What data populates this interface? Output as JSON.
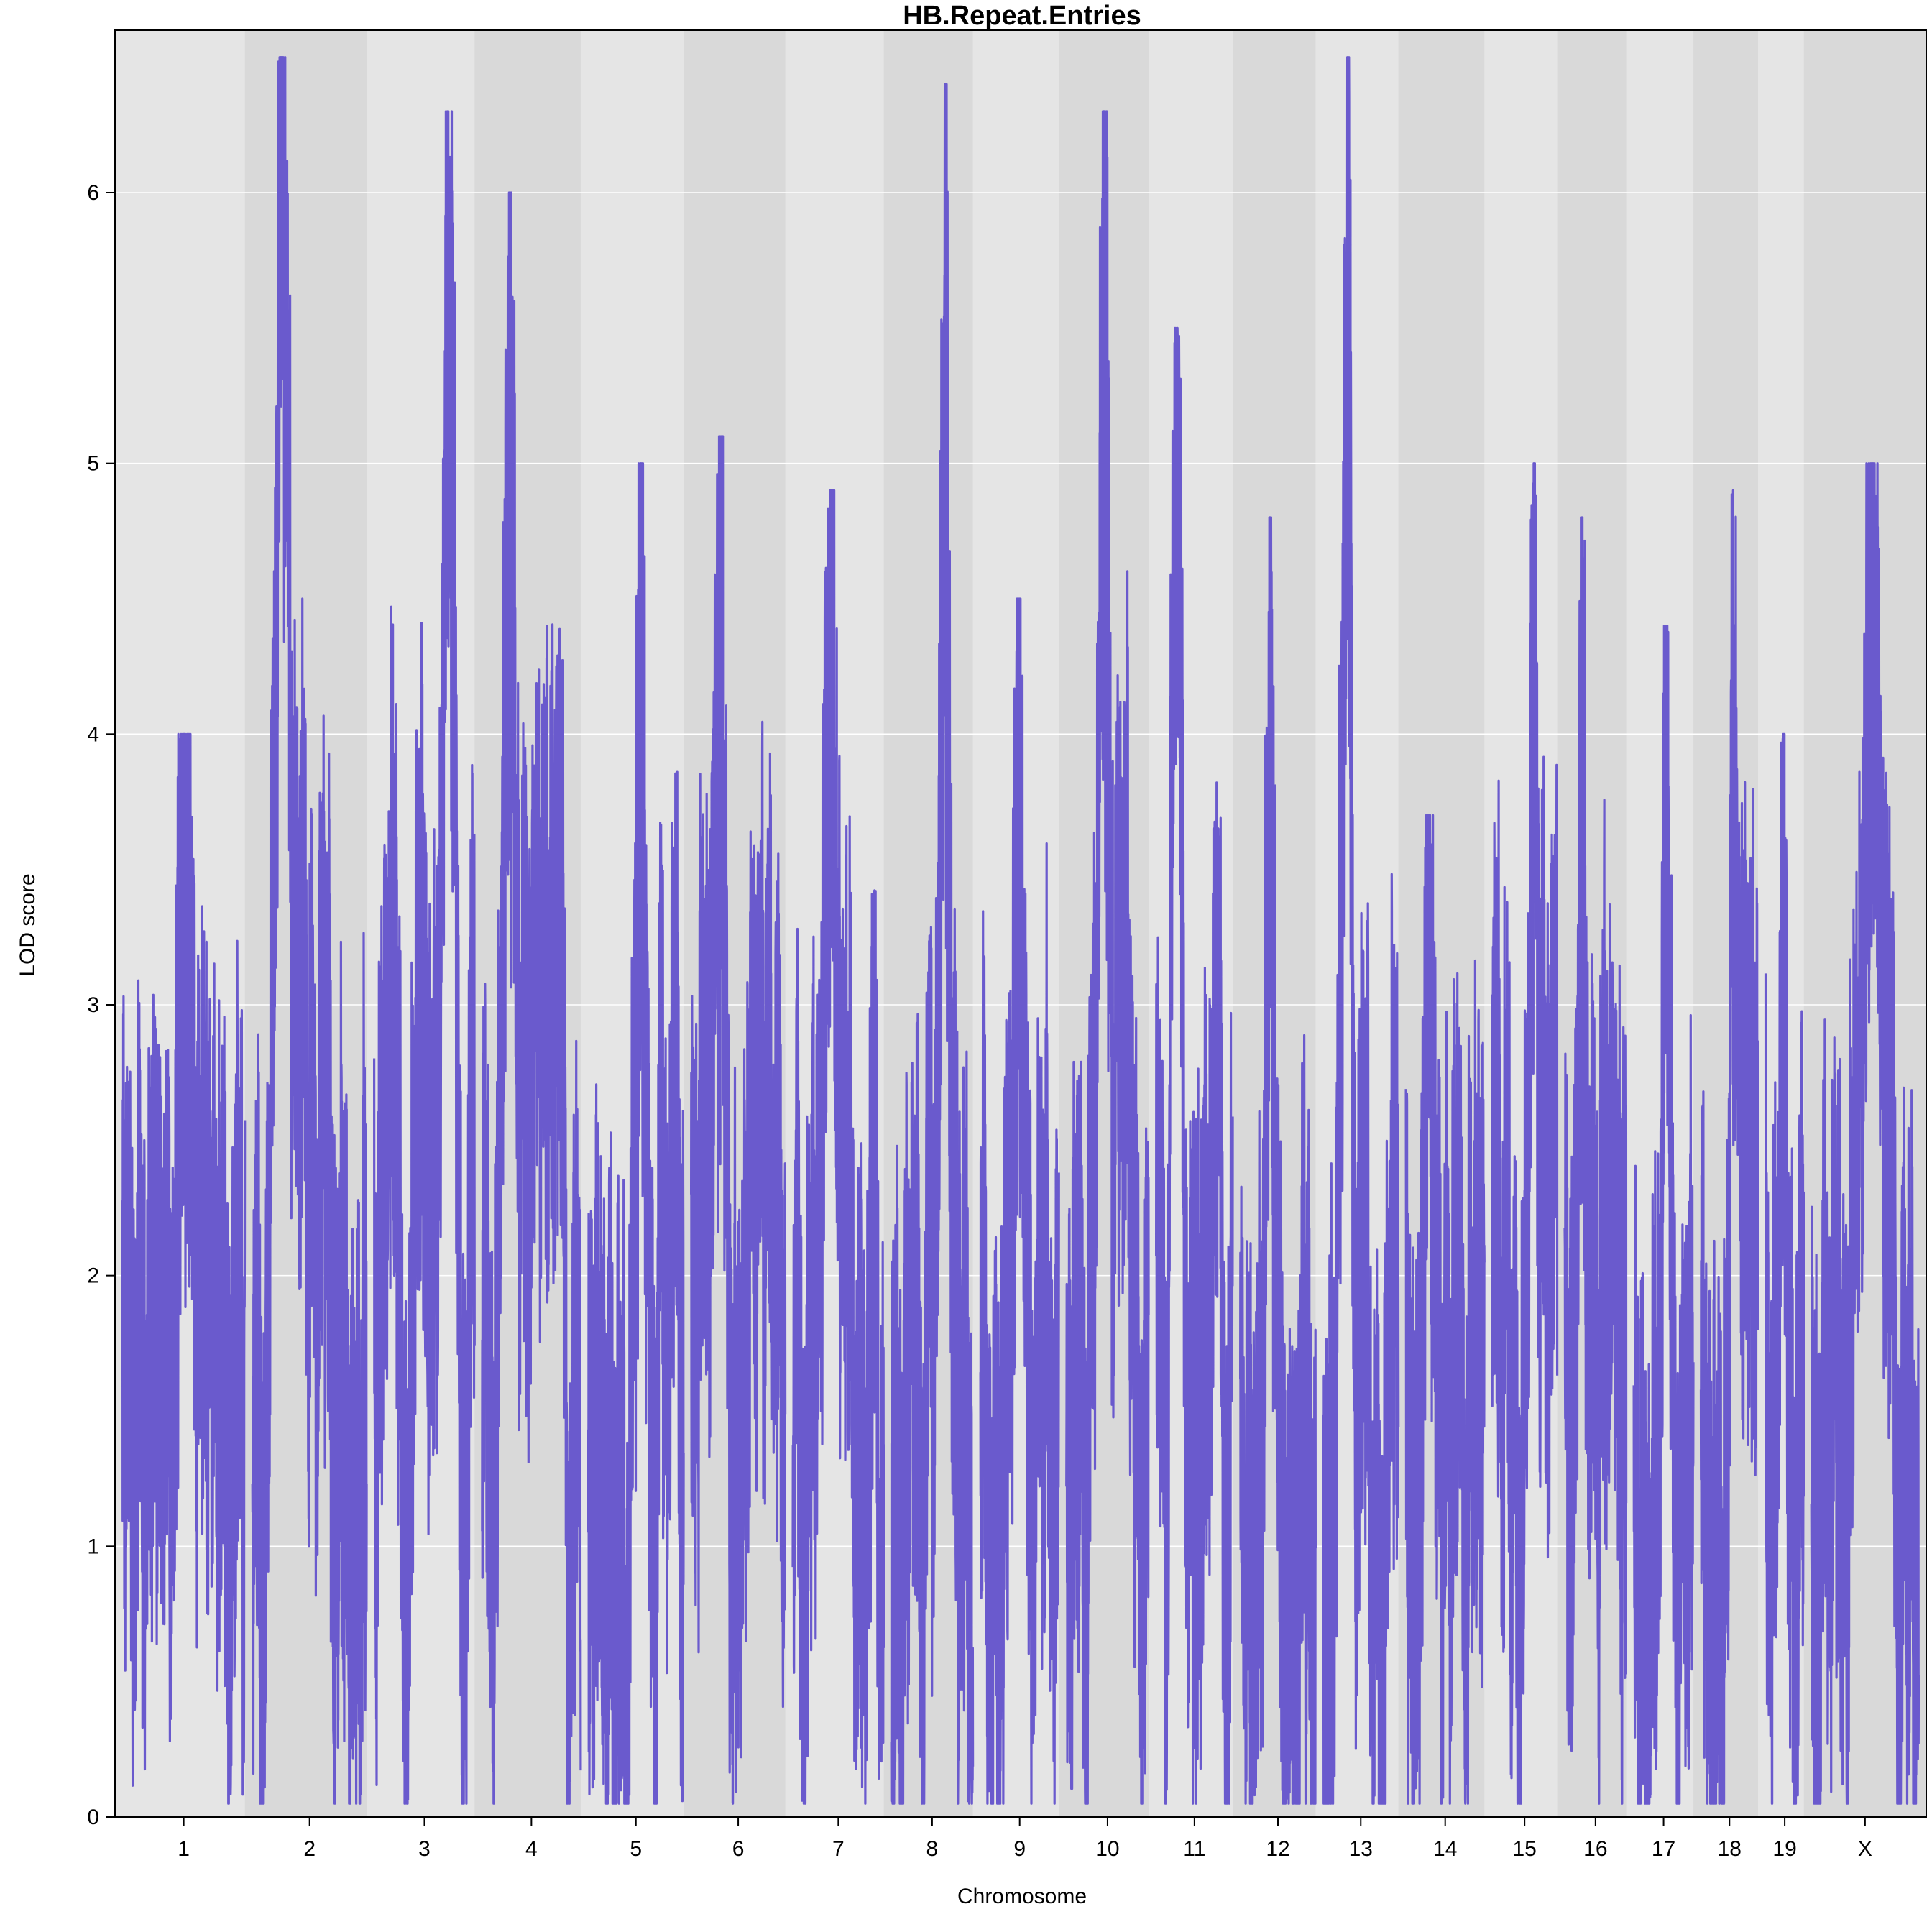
{
  "chart_data": {
    "type": "line",
    "title": "HB.Repeat.Entries",
    "xlabel": "Chromosome",
    "ylabel": "LOD score",
    "ylim": [
      0,
      6.6
    ],
    "yticks": [
      0,
      1,
      2,
      3,
      4,
      5,
      6
    ],
    "grid": true,
    "line_color": "#6a5acd",
    "band_colors": [
      "#e5e5e5",
      "#d9d9d9"
    ],
    "chromosomes": [
      "1",
      "2",
      "3",
      "4",
      "5",
      "6",
      "7",
      "8",
      "9",
      "10",
      "11",
      "12",
      "13",
      "14",
      "15",
      "16",
      "17",
      "18",
      "19",
      "X"
    ],
    "chromosome_lengths": [
      195,
      182,
      160,
      157,
      152,
      150,
      145,
      130,
      125,
      131,
      122,
      120,
      120,
      125,
      104,
      98,
      95,
      91,
      61,
      171
    ],
    "peak_lod": [
      {
        "chromosome": "1",
        "lod": 4.0
      },
      {
        "chromosome": "2",
        "lod": 6.5
      },
      {
        "chromosome": "3",
        "lod": 6.3
      },
      {
        "chromosome": "4",
        "lod": 6.0
      },
      {
        "chromosome": "5",
        "lod": 5.0
      },
      {
        "chromosome": "6",
        "lod": 5.1
      },
      {
        "chromosome": "7",
        "lod": 4.9
      },
      {
        "chromosome": "8",
        "lod": 6.4
      },
      {
        "chromosome": "9",
        "lod": 4.5
      },
      {
        "chromosome": "10",
        "lod": 6.3
      },
      {
        "chromosome": "11",
        "lod": 5.5
      },
      {
        "chromosome": "12",
        "lod": 4.8
      },
      {
        "chromosome": "13",
        "lod": 6.5
      },
      {
        "chromosome": "14",
        "lod": 3.7
      },
      {
        "chromosome": "15",
        "lod": 5.0
      },
      {
        "chromosome": "16",
        "lod": 4.8
      },
      {
        "chromosome": "17",
        "lod": 4.4
      },
      {
        "chromosome": "18",
        "lod": 4.9
      },
      {
        "chromosome": "19",
        "lod": 4.0
      },
      {
        "chromosome": "X",
        "lod": 5.0
      }
    ]
  }
}
